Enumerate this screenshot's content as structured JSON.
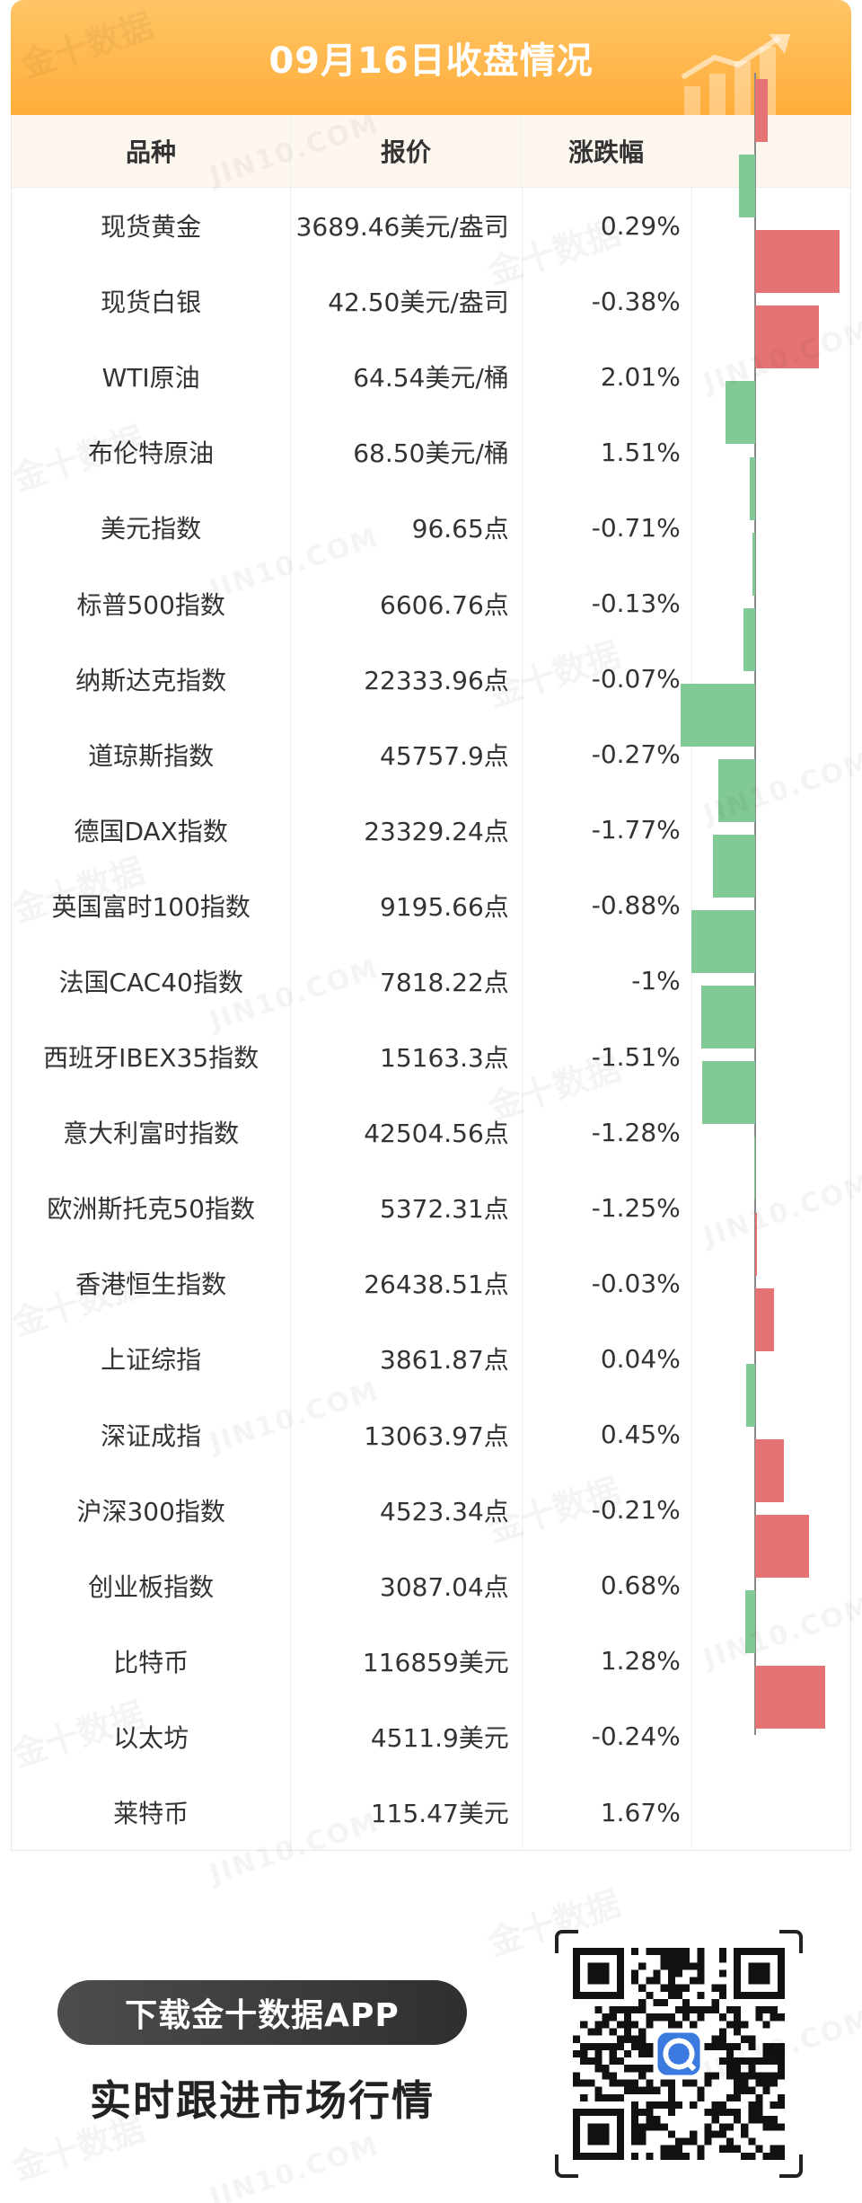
{
  "header": {
    "title": "09月16日收盘情况"
  },
  "columns": {
    "name": "品种",
    "price": "报价",
    "change": "涨跌幅"
  },
  "rows": [
    {
      "name": "现货黄金",
      "price": "3689.46美元/盎司",
      "change": "0.29%"
    },
    {
      "name": "现货白银",
      "price": "42.50美元/盎司",
      "change": "-0.38%"
    },
    {
      "name": "WTI原油",
      "price": "64.54美元/桶",
      "change": "2.01%"
    },
    {
      "name": "布伦特原油",
      "price": "68.50美元/桶",
      "change": "1.51%"
    },
    {
      "name": "美元指数",
      "price": "96.65点",
      "change": "-0.71%"
    },
    {
      "name": "标普500指数",
      "price": "6606.76点",
      "change": "-0.13%"
    },
    {
      "name": "纳斯达克指数",
      "price": "22333.96点",
      "change": "-0.07%"
    },
    {
      "name": "道琼斯指数",
      "price": "45757.9点",
      "change": "-0.27%"
    },
    {
      "name": "德国DAX指数",
      "price": "23329.24点",
      "change": "-1.77%"
    },
    {
      "name": "英国富时100指数",
      "price": "9195.66点",
      "change": "-0.88%"
    },
    {
      "name": "法国CAC40指数",
      "price": "7818.22点",
      "change": "-1%"
    },
    {
      "name": "西班牙IBEX35指数",
      "price": "15163.3点",
      "change": "-1.51%"
    },
    {
      "name": "意大利富时指数",
      "price": "42504.56点",
      "change": "-1.28%"
    },
    {
      "name": "欧洲斯托克50指数",
      "price": "5372.31点",
      "change": "-1.25%"
    },
    {
      "name": "香港恒生指数",
      "price": "26438.51点",
      "change": "-0.03%"
    },
    {
      "name": "上证综指",
      "price": "3861.87点",
      "change": "0.04%"
    },
    {
      "name": "深证成指",
      "price": "13063.97点",
      "change": "0.45%"
    },
    {
      "name": "沪深300指数",
      "price": "4523.34点",
      "change": "-0.21%"
    },
    {
      "name": "创业板指数",
      "price": "3087.04点",
      "change": "0.68%"
    },
    {
      "name": "比特币",
      "price": "116859美元",
      "change": "1.28%"
    },
    {
      "name": "以太坊",
      "price": "4511.9美元",
      "change": "-0.24%"
    },
    {
      "name": "莱特币",
      "price": "115.47美元",
      "change": "1.67%"
    }
  ],
  "chart_data": {
    "type": "bar",
    "orientation": "horizontal",
    "categories": [
      "现货黄金",
      "现货白银",
      "WTI原油",
      "布伦特原油",
      "美元指数",
      "标普500指数",
      "纳斯达克指数",
      "道琼斯指数",
      "德国DAX指数",
      "英国富时100指数",
      "法国CAC40指数",
      "西班牙IBEX35指数",
      "意大利富时指数",
      "欧洲斯托克50指数",
      "香港恒生指数",
      "上证综指",
      "深证成指",
      "沪深300指数",
      "创业板指数",
      "比特币",
      "以太坊",
      "莱特币"
    ],
    "values": [
      0.29,
      -0.38,
      2.01,
      1.51,
      -0.71,
      -0.13,
      -0.07,
      -0.27,
      -1.77,
      -0.88,
      -1,
      -1.51,
      -1.28,
      -1.25,
      -0.03,
      0.04,
      0.45,
      -0.21,
      0.68,
      1.28,
      -0.24,
      1.67
    ],
    "unit": "%",
    "positive_color": "#e57373",
    "negative_color": "#81c995",
    "xlim": [
      -2.1,
      2.1
    ]
  },
  "footer": {
    "download_label": "下载金十数据APP",
    "slogan": "实时跟进市场行情",
    "qr_icon": "qr-code-icon"
  },
  "watermark": {
    "cn": "金十数据",
    "en": "JIN10.COM"
  },
  "colors": {
    "header_start": "#ffc566",
    "header_end": "#ffad3a",
    "accent": "#ffad3a"
  }
}
